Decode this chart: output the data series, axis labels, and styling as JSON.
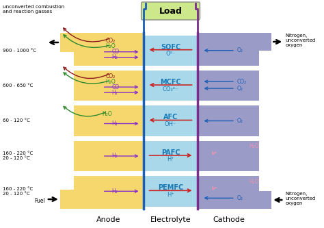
{
  "bg_color": "#ffffff",
  "anode_color": "#f5d76e",
  "electrolyte_color": "#a8d8ea",
  "cathode_color": "#9b9bc8",
  "load_color": "#cce88a",
  "wire_color_left": "#1a5fb4",
  "wire_color_right": "#7b2d8b",
  "fuel_cells": [
    "SOFC",
    "MCFC",
    "AFC",
    "PAFC",
    "PEMFC"
  ],
  "ion_labels": [
    "O²⁻",
    "CO₃²⁻",
    "OH⁻",
    "H⁺",
    "H⁺"
  ],
  "temp_labels": [
    "900 - 1000 °C",
    "600 - 650 °C",
    "60 - 120 °C",
    "160 - 220 °C\n20 - 120 °C",
    "160 - 220 °C\n20 - 120 °C"
  ],
  "h2_color": "#8b2fc9",
  "co_color": "#8b2fc9",
  "h2o_anode_color": "#2a8a2a",
  "co2_color": "#8b1a1a",
  "o2_color": "#1a5fb4",
  "ion_arrow_color": "#cc2222",
  "pink_color": "#e896b0",
  "black_color": "#111111",
  "fc_label_color": "#1a7ab5",
  "anode_label_color": "#111111",
  "elec_label_color": "#111111",
  "cath_label_color": "#111111"
}
